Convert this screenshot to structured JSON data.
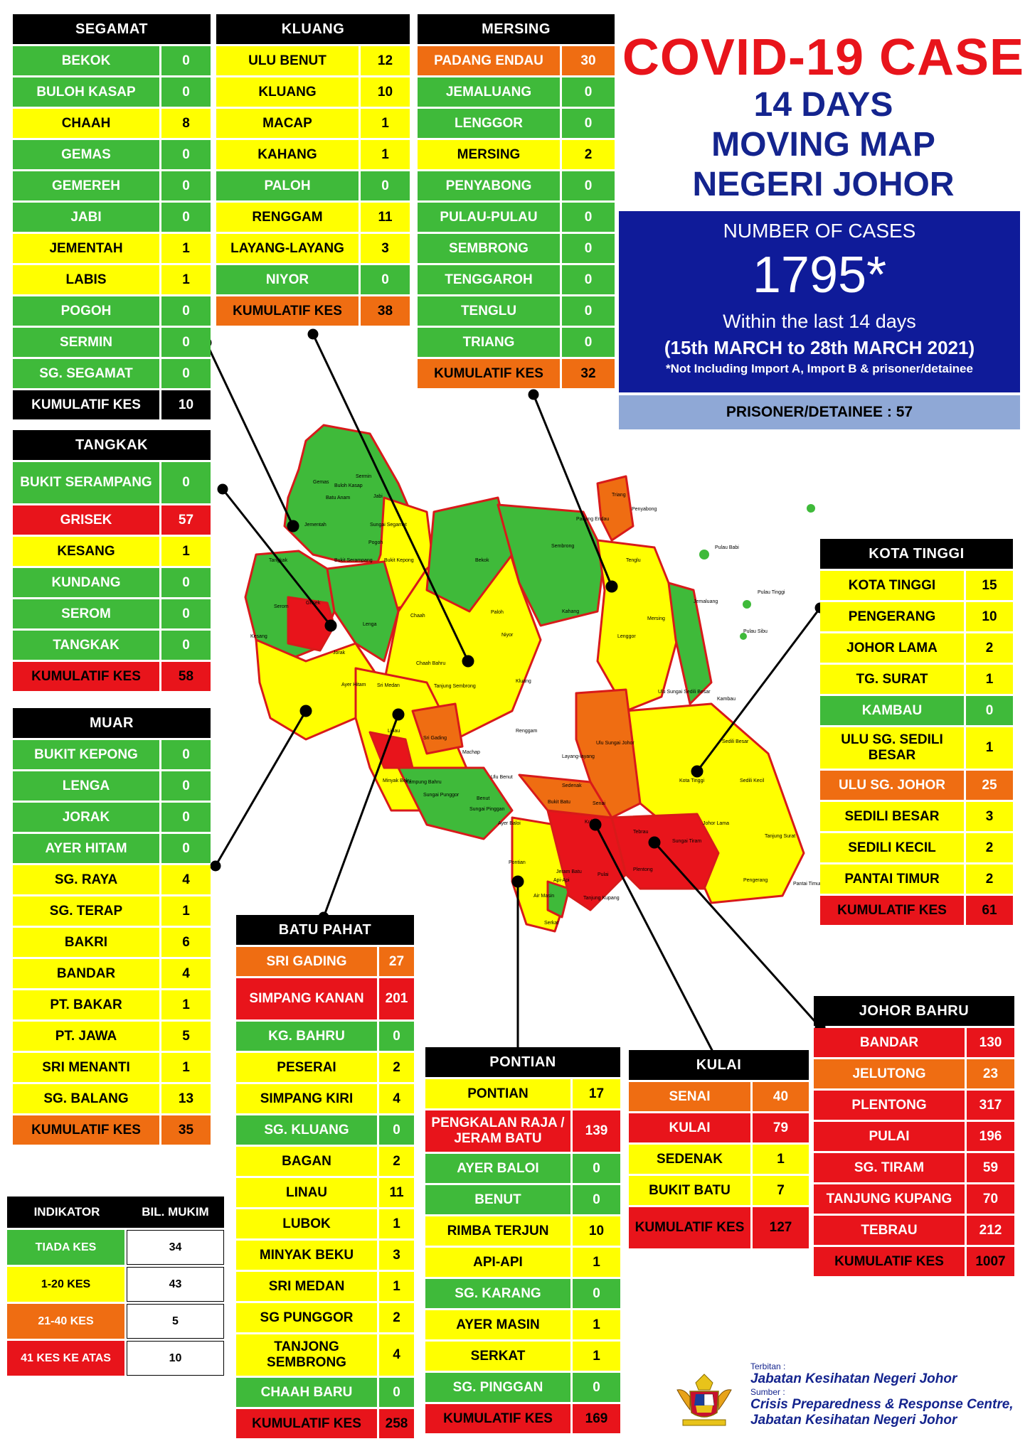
{
  "title": {
    "line1": "COVID-19 CASE",
    "line2": "14 DAYS",
    "line3": "MOVING MAP",
    "line4": "NEGERI JOHOR"
  },
  "summary": {
    "label": "NUMBER OF CASES",
    "total": "1795*",
    "within": "Within the last 14 days",
    "range": "(15th MARCH to 28th MARCH 2021)",
    "note": "*Not Including Import A, Import B & prisoner/detainee",
    "prisoner": "PRISONER/DETAINEE : 57"
  },
  "colors": {
    "green": "#3fba3a",
    "yellow": "#ffff00",
    "orange": "#ef6d12",
    "red": "#e8141b",
    "black": "#000000",
    "navy": "#0f1b99",
    "blue_text": "#14248e"
  },
  "districts": {
    "segamat": {
      "name": "SEGAMAT",
      "rows": [
        {
          "n": "BEKOK",
          "v": "0",
          "c": "green"
        },
        {
          "n": "BULOH KASAP",
          "v": "0",
          "c": "green"
        },
        {
          "n": "CHAAH",
          "v": "8",
          "c": "yellow"
        },
        {
          "n": "GEMAS",
          "v": "0",
          "c": "green"
        },
        {
          "n": "GEMEREH",
          "v": "0",
          "c": "green"
        },
        {
          "n": "JABI",
          "v": "0",
          "c": "green"
        },
        {
          "n": "JEMENTAH",
          "v": "1",
          "c": "yellow"
        },
        {
          "n": "LABIS",
          "v": "1",
          "c": "yellow"
        },
        {
          "n": "POGOH",
          "v": "0",
          "c": "green"
        },
        {
          "n": "SERMIN",
          "v": "0",
          "c": "green"
        },
        {
          "n": "SG. SEGAMAT",
          "v": "0",
          "c": "green"
        },
        {
          "n": "KUMULATIF KES",
          "v": "10",
          "c": "black"
        }
      ]
    },
    "kluang": {
      "name": "KLUANG",
      "rows": [
        {
          "n": "ULU BENUT",
          "v": "12",
          "c": "yellow"
        },
        {
          "n": "KLUANG",
          "v": "10",
          "c": "yellow"
        },
        {
          "n": "MACAP",
          "v": "1",
          "c": "yellow"
        },
        {
          "n": "KAHANG",
          "v": "1",
          "c": "yellow"
        },
        {
          "n": "PALOH",
          "v": "0",
          "c": "green"
        },
        {
          "n": "RENGGAM",
          "v": "11",
          "c": "yellow"
        },
        {
          "n": "LAYANG-LAYANG",
          "v": "3",
          "c": "yellow"
        },
        {
          "n": "NIYOR",
          "v": "0",
          "c": "green"
        },
        {
          "n": "KUMULATIF KES",
          "v": "38",
          "c": "orange"
        }
      ]
    },
    "mersing": {
      "name": "MERSING",
      "rows": [
        {
          "n": "PADANG ENDAU",
          "v": "30",
          "c": "orange"
        },
        {
          "n": "JEMALUANG",
          "v": "0",
          "c": "green"
        },
        {
          "n": "LENGGOR",
          "v": "0",
          "c": "green"
        },
        {
          "n": "MERSING",
          "v": "2",
          "c": "yellow"
        },
        {
          "n": "PENYABONG",
          "v": "0",
          "c": "green"
        },
        {
          "n": "PULAU-PULAU",
          "v": "0",
          "c": "green"
        },
        {
          "n": "SEMBRONG",
          "v": "0",
          "c": "green"
        },
        {
          "n": "TENGGAROH",
          "v": "0",
          "c": "green"
        },
        {
          "n": "TENGLU",
          "v": "0",
          "c": "green"
        },
        {
          "n": "TRIANG",
          "v": "0",
          "c": "green"
        },
        {
          "n": "KUMULATIF KES",
          "v": "32",
          "c": "orange"
        }
      ]
    },
    "tangkak": {
      "name": "TANGKAK",
      "rows": [
        {
          "n": "BUKIT SERAMPANG",
          "v": "0",
          "c": "green",
          "tall": true
        },
        {
          "n": "GRISEK",
          "v": "57",
          "c": "red"
        },
        {
          "n": "KESANG",
          "v": "1",
          "c": "yellow"
        },
        {
          "n": "KUNDANG",
          "v": "0",
          "c": "green"
        },
        {
          "n": "SEROM",
          "v": "0",
          "c": "green"
        },
        {
          "n": "TANGKAK",
          "v": "0",
          "c": "green"
        },
        {
          "n": "KUMULATIF KES",
          "v": "58",
          "c": "red"
        }
      ]
    },
    "muar": {
      "name": "MUAR",
      "rows": [
        {
          "n": "BUKIT KEPONG",
          "v": "0",
          "c": "green"
        },
        {
          "n": "LENGA",
          "v": "0",
          "c": "green"
        },
        {
          "n": "JORAK",
          "v": "0",
          "c": "green"
        },
        {
          "n": "AYER HITAM",
          "v": "0",
          "c": "green"
        },
        {
          "n": "SG. RAYA",
          "v": "4",
          "c": "yellow"
        },
        {
          "n": "SG. TERAP",
          "v": "1",
          "c": "yellow"
        },
        {
          "n": "BAKRI",
          "v": "6",
          "c": "yellow"
        },
        {
          "n": "BANDAR",
          "v": "4",
          "c": "yellow"
        },
        {
          "n": "PT. BAKAR",
          "v": "1",
          "c": "yellow"
        },
        {
          "n": "PT. JAWA",
          "v": "5",
          "c": "yellow"
        },
        {
          "n": "SRI MENANTI",
          "v": "1",
          "c": "yellow"
        },
        {
          "n": "SG. BALANG",
          "v": "13",
          "c": "yellow"
        },
        {
          "n": "KUMULATIF KES",
          "v": "35",
          "c": "orange"
        }
      ]
    },
    "kota_tinggi": {
      "name": "KOTA TINGGI",
      "rows": [
        {
          "n": "KOTA TINGGI",
          "v": "15",
          "c": "yellow"
        },
        {
          "n": "PENGERANG",
          "v": "10",
          "c": "yellow"
        },
        {
          "n": "JOHOR LAMA",
          "v": "2",
          "c": "yellow"
        },
        {
          "n": "TG. SURAT",
          "v": "1",
          "c": "yellow"
        },
        {
          "n": "KAMBAU",
          "v": "0",
          "c": "green"
        },
        {
          "n": "ULU SG. SEDILI BESAR",
          "v": "1",
          "c": "yellow",
          "tall": true
        },
        {
          "n": "ULU  SG. JOHOR",
          "v": "25",
          "c": "orange"
        },
        {
          "n": "SEDILI BESAR",
          "v": "3",
          "c": "yellow"
        },
        {
          "n": "SEDILI KECIL",
          "v": "2",
          "c": "yellow"
        },
        {
          "n": "PANTAI TIMUR",
          "v": "2",
          "c": "yellow"
        },
        {
          "n": "KUMULATIF KES",
          "v": "61",
          "c": "red"
        }
      ]
    },
    "batu_pahat": {
      "name": "BATU PAHAT",
      "rows": [
        {
          "n": "SRI GADING",
          "v": "27",
          "c": "orange"
        },
        {
          "n": "SIMPANG KANAN",
          "v": "201",
          "c": "red",
          "tall": true
        },
        {
          "n": "KG. BAHRU",
          "v": "0",
          "c": "green"
        },
        {
          "n": "PESERAI",
          "v": "2",
          "c": "yellow"
        },
        {
          "n": "SIMPANG KIRI",
          "v": "4",
          "c": "yellow"
        },
        {
          "n": "SG. KLUANG",
          "v": "0",
          "c": "green"
        },
        {
          "n": "BAGAN",
          "v": "2",
          "c": "yellow"
        },
        {
          "n": "LINAU",
          "v": "11",
          "c": "yellow"
        },
        {
          "n": "LUBOK",
          "v": "1",
          "c": "yellow"
        },
        {
          "n": "MINYAK BEKU",
          "v": "3",
          "c": "yellow"
        },
        {
          "n": "SRI MEDAN",
          "v": "1",
          "c": "yellow"
        },
        {
          "n": "SG PUNGGOR",
          "v": "2",
          "c": "yellow"
        },
        {
          "n": "TANJONG SEMBRONG",
          "v": "4",
          "c": "yellow",
          "tall": true
        },
        {
          "n": "CHAAH BARU",
          "v": "0",
          "c": "green"
        },
        {
          "n": "KUMULATIF KES",
          "v": "258",
          "c": "red"
        }
      ]
    },
    "pontian": {
      "name": "PONTIAN",
      "rows": [
        {
          "n": "PONTIAN",
          "v": "17",
          "c": "yellow"
        },
        {
          "n": "PENGKALAN RAJA / JERAM BATU",
          "v": "139",
          "c": "red",
          "tall": true
        },
        {
          "n": "AYER BALOI",
          "v": "0",
          "c": "green"
        },
        {
          "n": "BENUT",
          "v": "0",
          "c": "green"
        },
        {
          "n": "RIMBA TERJUN",
          "v": "10",
          "c": "yellow"
        },
        {
          "n": "API-API",
          "v": "1",
          "c": "yellow"
        },
        {
          "n": "SG. KARANG",
          "v": "0",
          "c": "green"
        },
        {
          "n": "AYER MASIN",
          "v": "1",
          "c": "yellow"
        },
        {
          "n": "SERKAT",
          "v": "1",
          "c": "yellow"
        },
        {
          "n": "SG. PINGGAN",
          "v": "0",
          "c": "green"
        },
        {
          "n": "KUMULATIF KES",
          "v": "169",
          "c": "red"
        }
      ]
    },
    "kulai": {
      "name": "KULAI",
      "rows": [
        {
          "n": "SENAI",
          "v": "40",
          "c": "orange"
        },
        {
          "n": "KULAI",
          "v": "79",
          "c": "red"
        },
        {
          "n": "SEDENAK",
          "v": "1",
          "c": "yellow"
        },
        {
          "n": "BUKIT BATU",
          "v": "7",
          "c": "yellow"
        },
        {
          "n": "KUMULATIF KES",
          "v": "127",
          "c": "red",
          "tall": true
        }
      ]
    },
    "johor_bahru": {
      "name": "JOHOR BAHRU",
      "rows": [
        {
          "n": "BANDAR",
          "v": "130",
          "c": "red"
        },
        {
          "n": "JELUTONG",
          "v": "23",
          "c": "orange"
        },
        {
          "n": "PLENTONG",
          "v": "317",
          "c": "red"
        },
        {
          "n": "PULAI",
          "v": "196",
          "c": "red"
        },
        {
          "n": "SG. TIRAM",
          "v": "59",
          "c": "red"
        },
        {
          "n": "TANJUNG KUPANG",
          "v": "70",
          "c": "red"
        },
        {
          "n": "TEBRAU",
          "v": "212",
          "c": "red"
        },
        {
          "n": "KUMULATIF KES",
          "v": "1007",
          "c": "red"
        }
      ]
    }
  },
  "legend": {
    "header_indicator": "INDIKATOR",
    "header_count": "BIL. MUKIM",
    "rows": [
      {
        "label": "TIADA KES",
        "count": "34",
        "c": "green"
      },
      {
        "label": "1-20 KES",
        "count": "43",
        "c": "yellow"
      },
      {
        "label": "21-40 KES",
        "count": "5",
        "c": "orange"
      },
      {
        "label": "41 KES KE ATAS",
        "count": "10",
        "c": "red"
      }
    ]
  },
  "footer": {
    "terbitan_label": "Terbitan :",
    "terbitan": "Jabatan Kesihatan Negeri Johor",
    "sumber_label": "Sumber :",
    "sumber1": "Crisis Preparedness & Response Centre,",
    "sumber2": "Jabatan Kesihatan Negeri Johor"
  },
  "map_labels": [
    "Gemas",
    "Buloh Kasap",
    "Sermin",
    "Jabi",
    "Batu Anam",
    "Sungai Segamat",
    "Jementah",
    "Pogoh",
    "Bekok",
    "Bukit Serampang",
    "Bukit Kepong",
    "Tangkak",
    "Grisek",
    "Lenga",
    "Serom",
    "Kesang",
    "Chaah",
    "Paloh",
    "Niyor",
    "Chaah Bahru",
    "Jorak",
    "Ayer Hitam",
    "Sri Medan",
    "Tanjung Sembrong",
    "Kluang",
    "Kahang",
    "Mersing",
    "Lenggor",
    "Jemaluang",
    "Sembrong",
    "Tenglu",
    "Penyabong",
    "Triang",
    "Padang Endau",
    "Pulau Babi",
    "Pulau Tinggi",
    "Pulau Sibu",
    "Kambau",
    "Ulu Sungai Sedili Besar",
    "Sedili Besar",
    "Ulu Sungai Johor",
    "Renggam",
    "Layang-layang",
    "Ulu Benut",
    "Machap",
    "Sri Gading",
    "Linau",
    "Minyak Beku",
    "Kampung Bahru",
    "Sungai Punggor",
    "Benut",
    "Sungai Pinggan",
    "Ayer Baloi",
    "Sedenak",
    "Bukit Batu",
    "Senai",
    "Kulai",
    "Kota Tinggi",
    "Sedili Kecil",
    "Johor Lama",
    "Tanjung Surat",
    "Pengerang",
    "Pantai Timur",
    "Tebrau",
    "Sungai Tiram",
    "Plentong",
    "Pulai",
    "Pontian",
    "Jeram Batu",
    "Api-Api",
    "Air Masin",
    "Serkat",
    "Tanjung Kupang"
  ]
}
